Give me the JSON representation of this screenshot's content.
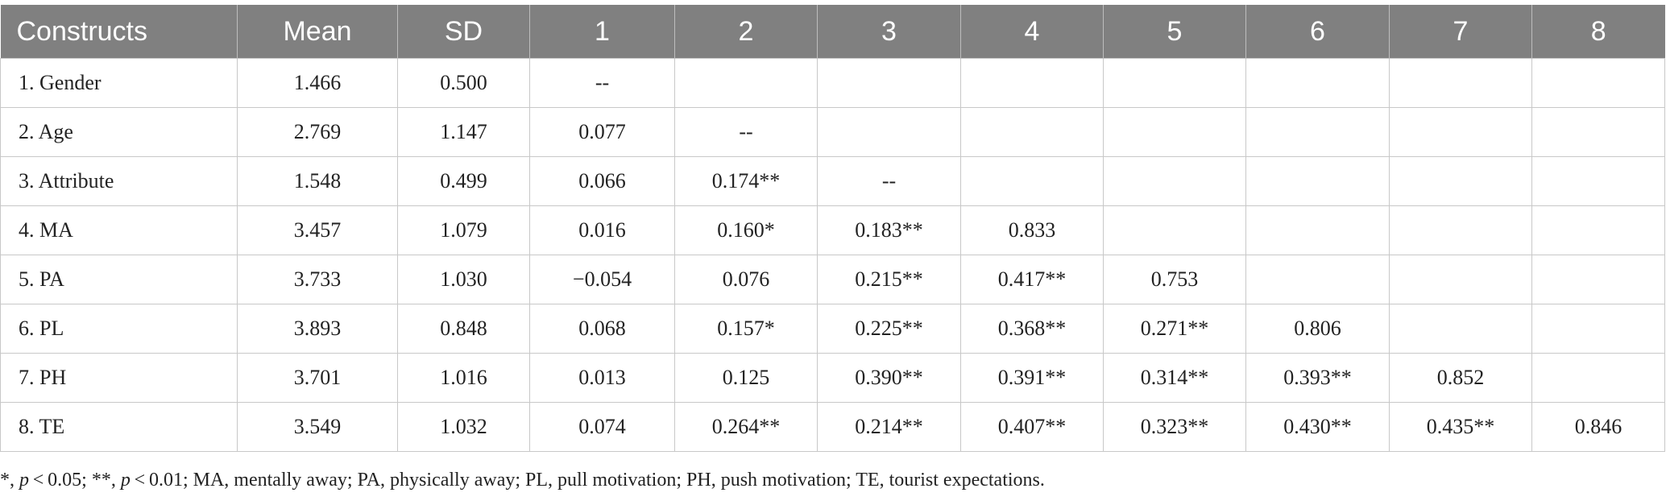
{
  "table": {
    "columns": [
      "Constructs",
      "Mean",
      "SD",
      "1",
      "2",
      "3",
      "4",
      "5",
      "6",
      "7",
      "8"
    ],
    "rows": [
      [
        "1. Gender",
        "1.466",
        "0.500",
        "--",
        "",
        "",
        "",
        "",
        "",
        "",
        ""
      ],
      [
        "2. Age",
        "2.769",
        "1.147",
        "0.077",
        "--",
        "",
        "",
        "",
        "",
        "",
        ""
      ],
      [
        "3. Attribute",
        "1.548",
        "0.499",
        "0.066",
        "0.174**",
        "--",
        "",
        "",
        "",
        "",
        ""
      ],
      [
        "4. MA",
        "3.457",
        "1.079",
        "0.016",
        "0.160*",
        "0.183**",
        "0.833",
        "",
        "",
        "",
        ""
      ],
      [
        "5. PA",
        "3.733",
        "1.030",
        "−0.054",
        "0.076",
        "0.215**",
        "0.417**",
        "0.753",
        "",
        "",
        ""
      ],
      [
        "6. PL",
        "3.893",
        "0.848",
        "0.068",
        "0.157*",
        "0.225**",
        "0.368**",
        "0.271**",
        "0.806",
        "",
        ""
      ],
      [
        "7. PH",
        "3.701",
        "1.016",
        "0.013",
        "0.125",
        "0.390**",
        "0.391**",
        "0.314**",
        "0.393**",
        "0.852",
        ""
      ],
      [
        "8. TE",
        "3.549",
        "1.032",
        "0.074",
        "0.264**",
        "0.214**",
        "0.407**",
        "0.323**",
        "0.430**",
        "0.435**",
        "0.846"
      ]
    ]
  },
  "footnote": {
    "part1": "*, ",
    "p1": "p",
    "part2": " < 0.05; **, ",
    "p2": "p",
    "part3": " < 0.01; MA, mentally away; PA, physically away; PL, pull motivation; PH, push motivation; TE, tourist expectations."
  },
  "colors": {
    "header_bg": "#808080",
    "header_text": "#ffffff",
    "grid": "#c8c8c8"
  }
}
